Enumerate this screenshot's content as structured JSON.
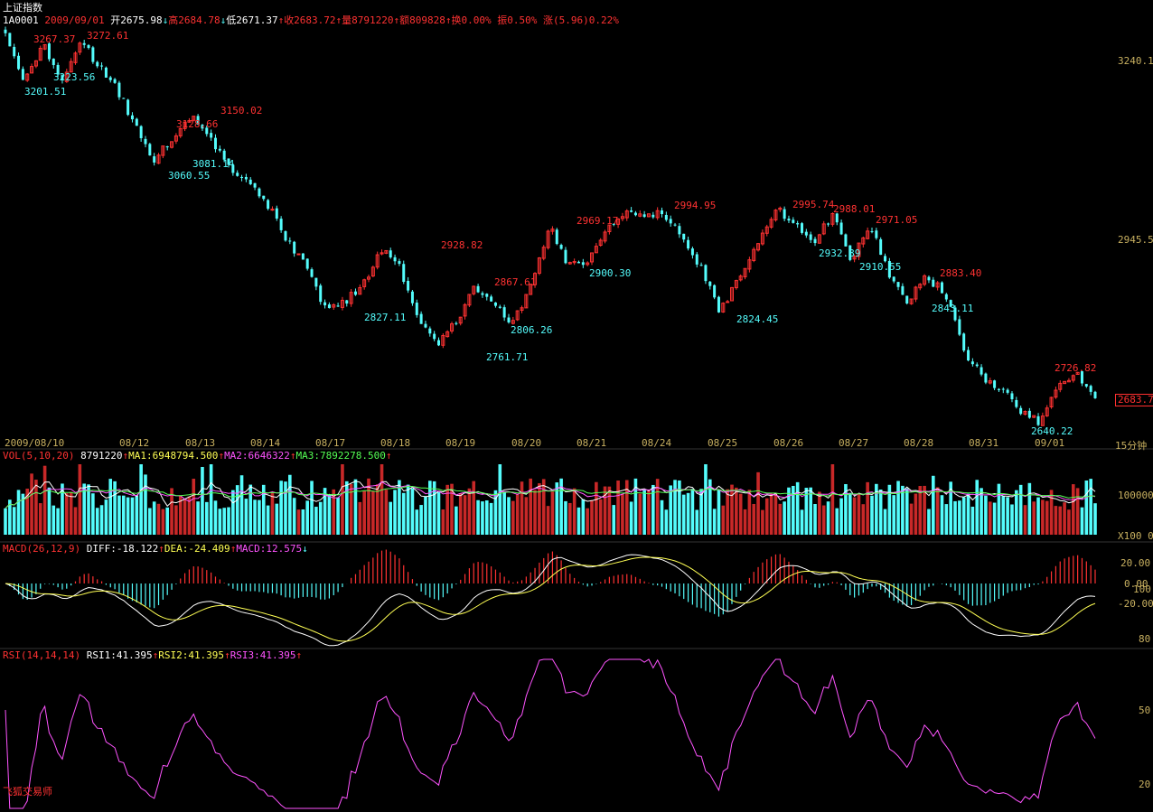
{
  "header": {
    "name": "上证指数",
    "code": "1A0001",
    "date": "2009/09/01",
    "open": "开2675.98",
    "high": "高2684.78",
    "low": "低2671.37",
    "close": "收2683.72",
    "volume": "量8791220",
    "amount": "额809828",
    "turnover": "换0.00%",
    "amplitude": "振0.50%",
    "change": "涨(5.96)0.22%",
    "arrow_down": "↓",
    "arrow_up": "↑"
  },
  "brand": "飞狐交易师",
  "current_price_tag": "2683.7",
  "price_axis": [
    "3240.1",
    "2945.5"
  ],
  "period_label": "15分钟",
  "date_axis": [
    "2009/08/10",
    "08/12",
    "08/13",
    "08/14",
    "08/17",
    "08/18",
    "08/19",
    "08/20",
    "08/21",
    "08/24",
    "08/25",
    "08/26",
    "08/27",
    "08/28",
    "08/31",
    "09/01"
  ],
  "vol_panel": {
    "title": "VOL(5,10,20)",
    "value": "8791220",
    "ma1": "MA1:6948794.500",
    "ma2": "MA2:6646322",
    "ma3": "MA3:7892278.500",
    "axis": [
      "100000",
      "X100",
      "0"
    ]
  },
  "macd_panel": {
    "title": "MACD(26,12,9)",
    "diff": "DIFF:-18.122",
    "dea": "DEA:-24.409",
    "macd": "MACD:12.575",
    "axis": [
      "20.00",
      "0.00",
      "-20.00",
      "100",
      "80"
    ]
  },
  "rsi_panel": {
    "title": "RSI(14,14,14)",
    "rsi1": "RSI1:41.395",
    "rsi2": "RSI2:41.395",
    "rsi3": "RSI3:41.395",
    "axis": [
      "50",
      "20"
    ]
  },
  "colors": {
    "background": "#000000",
    "up": "#ff3232",
    "down": "#54fcfc",
    "yellow": "#ffff54",
    "magenta": "#ff54ff",
    "green": "#54ff54",
    "white": "#ffffff",
    "axis": "#c8b060"
  },
  "chart_data": {
    "type": "candlestick",
    "price_annotations": {
      "highs": [
        "3267.37",
        "3272.61",
        "3128.66",
        "3150.02",
        "2928.82",
        "2867.61",
        "2969.17",
        "2994.95",
        "2995.74",
        "2988.01",
        "2971.05",
        "2883.40",
        "2726.82"
      ],
      "lows": [
        "3201.51",
        "3223.56",
        "3081.14",
        "3060.55",
        "2827.11",
        "2761.71",
        "2806.26",
        "2900.30",
        "2824.45",
        "2932.89",
        "2910.55",
        "2843.11",
        "2640.22"
      ]
    },
    "close_keypoints": [
      3285,
      3200,
      3268,
      3210,
      3272,
      3230,
      3190,
      3125,
      3075,
      3120,
      3150,
      3105,
      3060,
      3045,
      3000,
      2945,
      2900,
      2830,
      2840,
      2870,
      2928,
      2900,
      2810,
      2770,
      2810,
      2868,
      2840,
      2805,
      2870,
      2969,
      2900,
      2910,
      2960,
      2995,
      2985,
      2990,
      2950,
      2900,
      2825,
      2880,
      2940,
      2995,
      2975,
      2935,
      2988,
      2910,
      2970,
      2890,
      2845,
      2883,
      2860,
      2760,
      2720,
      2700,
      2660,
      2645,
      2700,
      2726,
      2683.72
    ],
    "last_close": 2683.72
  }
}
